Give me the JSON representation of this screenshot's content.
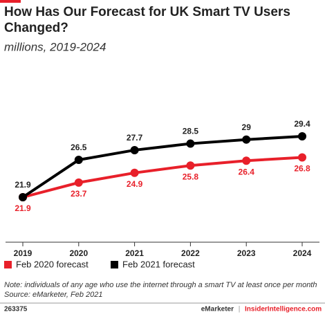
{
  "chart_data": {
    "type": "line",
    "title": "How Has Our Forecast for UK Smart TV Users Changed?",
    "subtitle": "millions, 2019-2024",
    "categories": [
      "2019",
      "2020",
      "2021",
      "2022",
      "2023",
      "2024"
    ],
    "series": [
      {
        "name": "Feb 2020 forecast",
        "color": "#e8202a",
        "values": [
          21.9,
          23.7,
          24.9,
          25.8,
          26.4,
          26.8
        ]
      },
      {
        "name": "Feb 2021 forecast",
        "color": "#000000",
        "values": [
          21.9,
          26.5,
          27.7,
          28.5,
          29.0,
          29.4
        ]
      }
    ],
    "note": "Note: individuals of any age who use the internet through a smart TV at least once per month",
    "source": "Source: eMarketer, Feb 2021"
  },
  "footer": {
    "id": "263375",
    "brand": "eMarketer",
    "separator": "|",
    "site": "InsiderIntelligence.com"
  }
}
